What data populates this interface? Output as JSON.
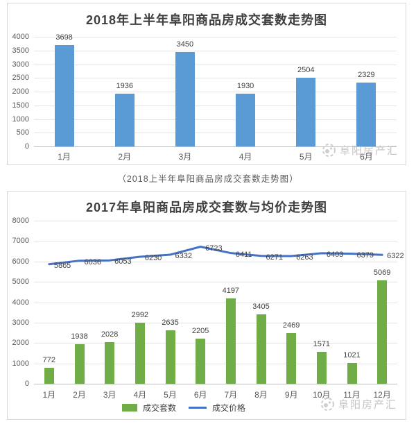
{
  "caption": "（2018上半年阜阳商品房成交套数走势图）",
  "watermark": {
    "text": "阜阳房产汇"
  },
  "colors": {
    "blue_bar": "#5B9BD5",
    "green_bar": "#70AD47",
    "price_line": "#4472C4",
    "grid": "#e4e4e4",
    "axis": "#bfbfbf"
  },
  "chart_data": [
    {
      "type": "bar",
      "title": "2018年上半年阜阳商品房成交套数走势图",
      "categories": [
        "1月",
        "2月",
        "3月",
        "4月",
        "5月",
        "6月"
      ],
      "values": [
        3698,
        1936,
        3450,
        1930,
        2504,
        2329
      ],
      "bar_color": "#5B9BD5",
      "xlabel": "",
      "ylabel": "",
      "ylim": [
        0,
        4000
      ],
      "yticks": [
        0,
        500,
        1000,
        1500,
        2000,
        2500,
        3000,
        3500,
        4000
      ],
      "grid": true,
      "legend_position": "none",
      "data_labels": true
    },
    {
      "type": "bar+line",
      "title": "2017年阜阳商品房成交套数与均价走势图",
      "categories": [
        "1月",
        "2月",
        "3月",
        "4月",
        "5月",
        "6月",
        "7月",
        "8月",
        "9月",
        "10月",
        "11月",
        "12月"
      ],
      "series": [
        {
          "name": "成交套数",
          "type": "bar",
          "color": "#70AD47",
          "values": [
            772,
            1938,
            2028,
            2992,
            2635,
            2205,
            4197,
            3405,
            2469,
            1571,
            1021,
            5069
          ]
        },
        {
          "name": "成交价格",
          "type": "line",
          "color": "#4472C4",
          "values": [
            5865,
            6036,
            6053,
            6230,
            6332,
            6723,
            6411,
            6271,
            6263,
            6403,
            6379,
            6322
          ]
        }
      ],
      "xlabel": "",
      "ylabel": "",
      "ylim": [
        0,
        8000
      ],
      "yticks": [
        0,
        1000,
        2000,
        3000,
        4000,
        5000,
        6000,
        7000,
        8000
      ],
      "grid": true,
      "legend_position": "bottom",
      "data_labels": true
    }
  ]
}
